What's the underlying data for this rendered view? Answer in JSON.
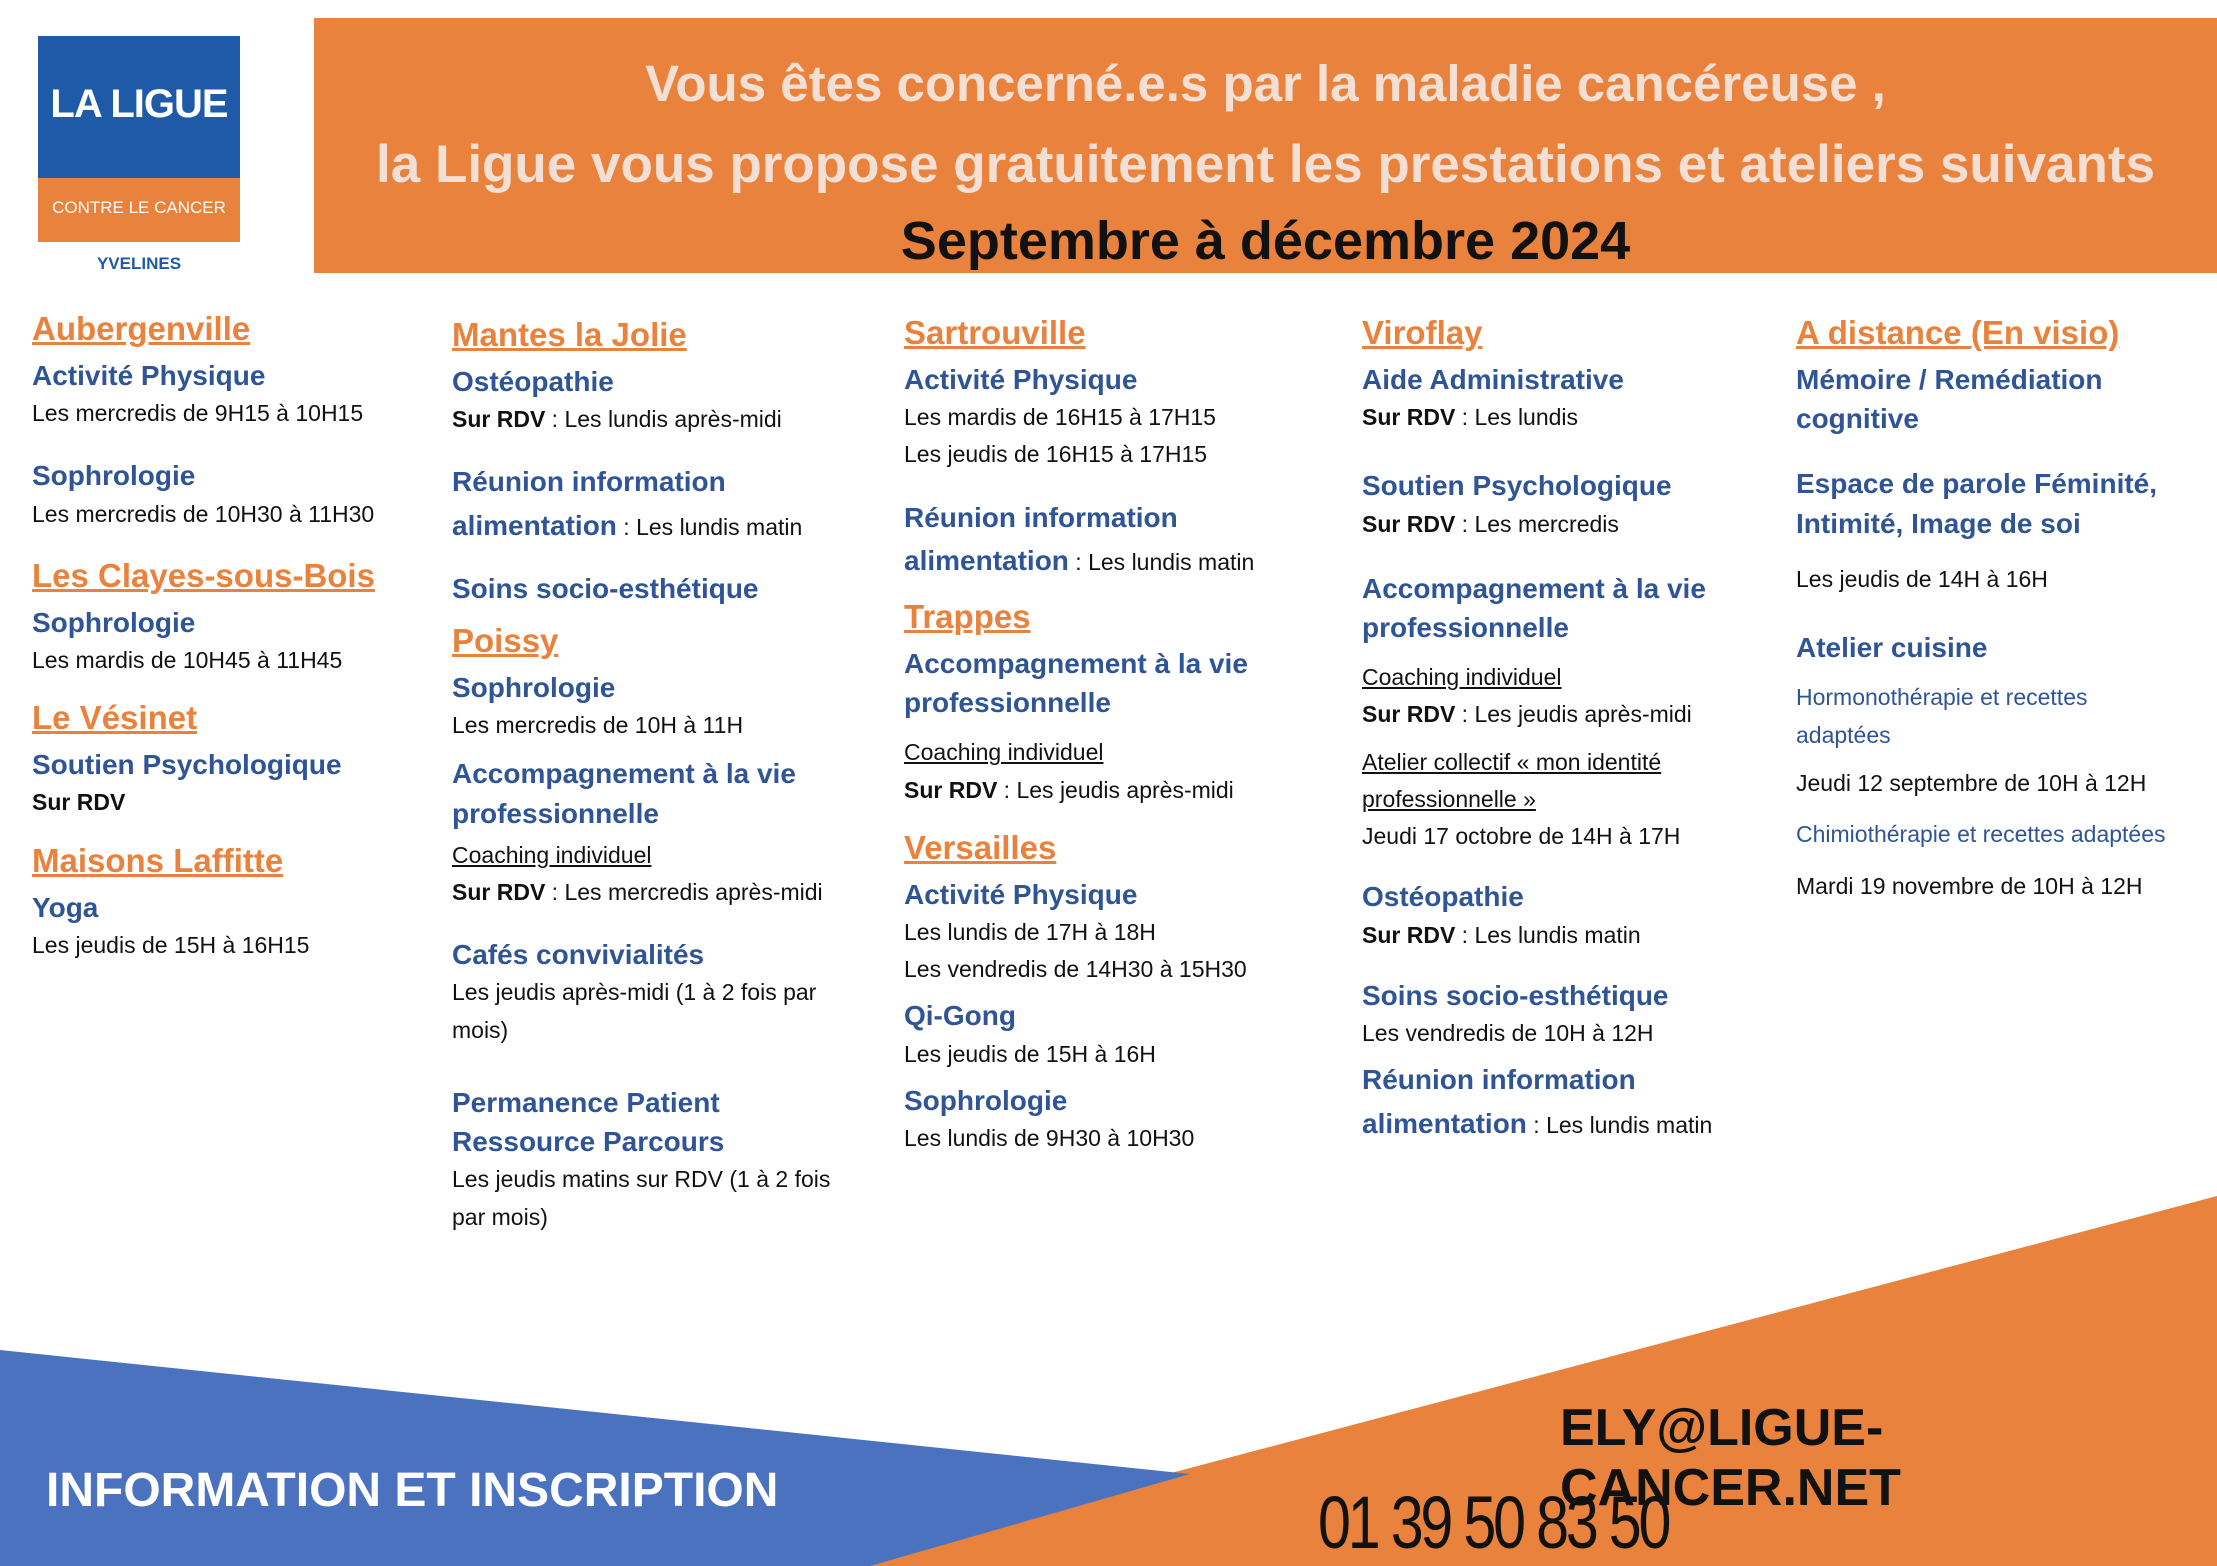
{
  "logo": {
    "name": "LA LIGUE",
    "subtitle": "CONTRE LE CANCER",
    "department": "YVELINES"
  },
  "banner": {
    "line1": "Vous êtes concerné.e.s par la maladie cancéreuse ,",
    "line2": "la Ligue vous propose gratuitement les prestations et ateliers suivants",
    "line3": "Septembre à décembre 2024"
  },
  "col1": {
    "aubergenville": "Aubergenville",
    "a1": "Activité Physique",
    "a1t": "Les mercredis de 9H15 à 10H15",
    "a2": "Sophrologie",
    "a2t": "Les mercredis de 10H30 à 11H30",
    "clayes": "Les Clayes-sous-Bois",
    "c1": "Sophrologie",
    "c1t": "Les mardis de 10H45 à 11H45",
    "vesinet": "Le Vésinet",
    "v1": "Soutien Psychologique",
    "v1t": "Sur RDV",
    "maisons": "Maisons Laffitte",
    "m1": "Yoga",
    "m1t": "Les jeudis de 15H à 16H15"
  },
  "col2": {
    "mantes": "Mantes la Jolie",
    "m1": "Ostéopathie",
    "rdv": "Sur RDV",
    "m1t": " : Les lundis après-midi",
    "m2a": "Réunion information",
    "m2b": "alimentation",
    "m2t": " : Les lundis matin",
    "m3": "Soins socio-esthétique",
    "poissy": "Poissy",
    "p1": "Sophrologie",
    "p1t": "Les mercredis de 10H à 11H",
    "p2a": "Accompagnement à la vie",
    "p2b": "professionnelle",
    "p2u": "Coaching individuel",
    "p2t": " : Les mercredis après-midi",
    "p3": "Cafés convivialités",
    "p3t1": "Les jeudis après-midi (1 à 2 fois par",
    "p3t2": "mois)",
    "p4a": "Permanence Patient",
    "p4b": "Ressource Parcours",
    "p4t1": "Les jeudis matins sur RDV (1 à 2 fois",
    "p4t2": "par mois)"
  },
  "col3": {
    "sartrouville": "Sartrouville",
    "s1": "Activité Physique",
    "s1t1": "Les mardis de 16H15 à 17H15",
    "s1t2": "Les jeudis de 16H15 à 17H15",
    "s2a": "Réunion information",
    "s2b": "alimentation",
    "s2t": " : Les lundis matin",
    "trappes": "Trappes",
    "t1a": "Accompagnement à la vie",
    "t1b": "professionnelle",
    "t1u": "Coaching individuel",
    "rdv": "Sur RDV",
    "t1t": " : Les jeudis après-midi",
    "versailles": "Versailles",
    "v1": "Activité Physique",
    "v1t1": "Les lundis de 17H à 18H",
    "v1t2": "Les vendredis de 14H30 à 15H30",
    "v2": "Qi-Gong",
    "v2t": "Les jeudis de 15H à 16H",
    "v3": "Sophrologie",
    "v3t": "Les lundis de 9H30 à 10H30"
  },
  "col4": {
    "viroflay": "Viroflay",
    "r1": "Aide Administrative",
    "rdv": "Sur RDV",
    "r1t": " : Les lundis",
    "r2": "Soutien Psychologique",
    "r2t": " : Les mercredis",
    "r3a": "Accompagnement à la vie",
    "r3b": "professionnelle",
    "r3u": "Coaching individuel",
    "r3t": " : Les jeudis après-midi",
    "r3u2a": "Atelier collectif « mon identité",
    "r3u2b": "professionnelle »",
    "r3t2": "Jeudi 17 octobre de 14H à 17H",
    "r4": "Ostéopathie",
    "r4t": " : Les lundis matin",
    "r5": "Soins socio-esthétique",
    "r5t": "Les vendredis de 10H à 12H",
    "r6a": "Réunion information",
    "r6b": "alimentation",
    "r6t": " : Les lundis matin"
  },
  "col5": {
    "distance": "A distance (En visio)",
    "d1a": "Mémoire / Remédiation",
    "d1b": "cognitive",
    "d2a": "Espace de parole Féminité,",
    "d2b": "Intimité, Image de soi",
    "d2t": "Les jeudis de 14H à 16H",
    "d3": "Atelier cuisine",
    "d3s1a": "Hormonothérapie et recettes",
    "d3s1b": "adaptées",
    "d3t1": "Jeudi 12 septembre de 10H à 12H",
    "d3s2": "Chimiothérapie et recettes adaptées",
    "d3t2": "Mardi 19 novembre de 10H à 12H"
  },
  "footer": {
    "info": "INFORMATION ET INSCRIPTION",
    "email": "ELY@LIGUE-CANCER.NET",
    "phone": "01 39 50 83 50"
  },
  "colors": {
    "orange": "#e8823c",
    "blue": "#2f5596",
    "footer_blue": "#4a72bf"
  }
}
